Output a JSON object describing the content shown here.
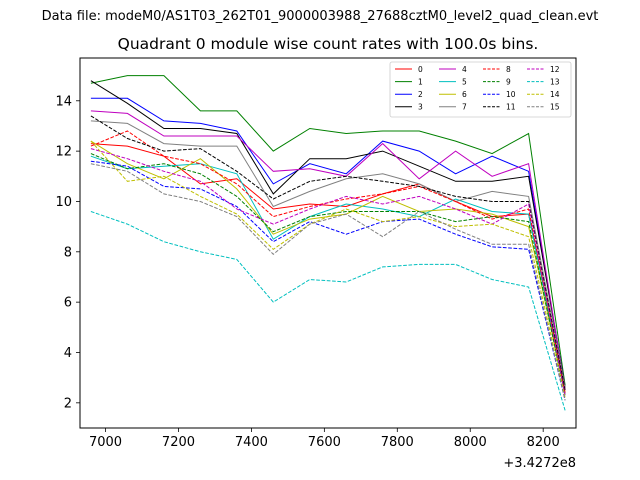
{
  "figure": {
    "suptitle": "Data file: modeM0/AS1T03_262T01_9000003988_27688cztM0_level2_quad_clean.evt"
  },
  "chart_data": {
    "type": "line",
    "title": "Quadrant 0 module wise count rates with 100.0s bins.",
    "xlabel": "",
    "ylabel": "",
    "x_offset_label": "+3.4272e8",
    "xlim": [
      6930,
      8290
    ],
    "ylim": [
      1.0,
      15.7
    ],
    "xticks": [
      7000,
      7200,
      7400,
      7600,
      7800,
      8000,
      8200
    ],
    "yticks": [
      2,
      4,
      6,
      8,
      10,
      12,
      14
    ],
    "legend_position": "upper-right",
    "legend_columns": 4,
    "x": [
      6960,
      7060,
      7160,
      7260,
      7360,
      7460,
      7560,
      7660,
      7760,
      7860,
      7960,
      8060,
      8160,
      8260
    ],
    "series": [
      {
        "name": "0",
        "color": "#ff0000",
        "dash": "solid",
        "values": [
          12.3,
          12.2,
          11.8,
          10.7,
          10.9,
          9.7,
          9.9,
          9.8,
          10.3,
          10.7,
          10.0,
          9.4,
          9.5,
          2.5
        ]
      },
      {
        "name": "1",
        "color": "#008000",
        "dash": "solid",
        "values": [
          14.7,
          15.0,
          15.0,
          13.6,
          13.6,
          12.0,
          12.9,
          12.7,
          12.8,
          12.8,
          12.4,
          11.9,
          12.7,
          2.7
        ]
      },
      {
        "name": "2",
        "color": "#0000ff",
        "dash": "solid",
        "values": [
          14.1,
          14.1,
          13.2,
          13.1,
          12.8,
          10.7,
          11.5,
          11.1,
          12.4,
          12.0,
          11.1,
          11.8,
          11.2,
          2.6
        ]
      },
      {
        "name": "3",
        "color": "#000000",
        "dash": "solid",
        "values": [
          14.8,
          13.9,
          12.9,
          12.9,
          12.7,
          10.3,
          11.7,
          11.7,
          12.0,
          11.4,
          10.8,
          10.8,
          11.0,
          2.6
        ]
      },
      {
        "name": "4",
        "color": "#bf00bf",
        "dash": "solid",
        "values": [
          13.6,
          13.5,
          12.6,
          12.6,
          12.6,
          11.2,
          11.3,
          11.0,
          12.3,
          10.9,
          12.0,
          11.0,
          11.5,
          2.5
        ]
      },
      {
        "name": "5",
        "color": "#00bfbf",
        "dash": "solid",
        "values": [
          11.8,
          11.3,
          11.4,
          11.5,
          11.1,
          8.5,
          9.4,
          9.9,
          9.7,
          9.4,
          10.1,
          9.6,
          9.5,
          2.3
        ]
      },
      {
        "name": "6",
        "color": "#bfbf00",
        "dash": "solid",
        "values": [
          12.4,
          11.5,
          10.9,
          11.7,
          10.5,
          8.7,
          9.3,
          9.5,
          10.2,
          9.6,
          9.7,
          9.5,
          9.0,
          2.4
        ]
      },
      {
        "name": "7",
        "color": "#808080",
        "dash": "solid",
        "values": [
          13.2,
          13.1,
          12.3,
          12.2,
          12.2,
          9.8,
          10.4,
          10.9,
          11.1,
          10.7,
          10.0,
          10.4,
          10.2,
          2.6
        ]
      },
      {
        "name": "8",
        "color": "#ff0000",
        "dash": "dashed",
        "values": [
          12.2,
          12.8,
          11.8,
          11.5,
          10.7,
          9.4,
          9.8,
          10.1,
          10.3,
          10.6,
          10.0,
          9.3,
          9.7,
          2.4
        ]
      },
      {
        "name": "9",
        "color": "#008000",
        "dash": "dashed",
        "values": [
          11.9,
          11.3,
          11.5,
          11.1,
          10.2,
          8.8,
          9.4,
          9.6,
          9.6,
          9.6,
          9.2,
          9.4,
          9.2,
          2.3
        ]
      },
      {
        "name": "10",
        "color": "#0000ff",
        "dash": "dashed",
        "values": [
          11.6,
          11.4,
          10.6,
          10.5,
          9.8,
          8.4,
          9.2,
          8.7,
          9.2,
          9.3,
          8.7,
          8.2,
          8.1,
          2.1
        ]
      },
      {
        "name": "11",
        "color": "#000000",
        "dash": "dashed",
        "values": [
          13.4,
          12.5,
          12.0,
          12.1,
          11.2,
          10.1,
          10.8,
          11.0,
          10.8,
          10.6,
          10.2,
          10.0,
          10.0,
          2.5
        ]
      },
      {
        "name": "12",
        "color": "#bf00bf",
        "dash": "dashed",
        "values": [
          12.1,
          11.7,
          11.2,
          10.8,
          9.7,
          9.1,
          9.7,
          10.2,
          9.9,
          10.2,
          9.7,
          9.1,
          9.9,
          2.3
        ]
      },
      {
        "name": "13",
        "color": "#00bfbf",
        "dash": "dashed",
        "values": [
          9.6,
          9.1,
          8.4,
          8.0,
          7.7,
          6.0,
          6.9,
          6.8,
          7.4,
          7.5,
          7.5,
          6.9,
          6.6,
          1.7
        ]
      },
      {
        "name": "14",
        "color": "#bfbf00",
        "dash": "dashed",
        "values": [
          12.4,
          10.8,
          11.0,
          10.2,
          9.5,
          8.1,
          9.1,
          9.7,
          9.2,
          9.4,
          9.0,
          9.1,
          8.6,
          2.2
        ]
      },
      {
        "name": "15",
        "color": "#808080",
        "dash": "dashed",
        "values": [
          11.5,
          11.2,
          10.3,
          10.0,
          9.4,
          7.9,
          9.1,
          9.5,
          8.6,
          9.6,
          8.9,
          8.3,
          8.3,
          2.1
        ]
      }
    ]
  }
}
